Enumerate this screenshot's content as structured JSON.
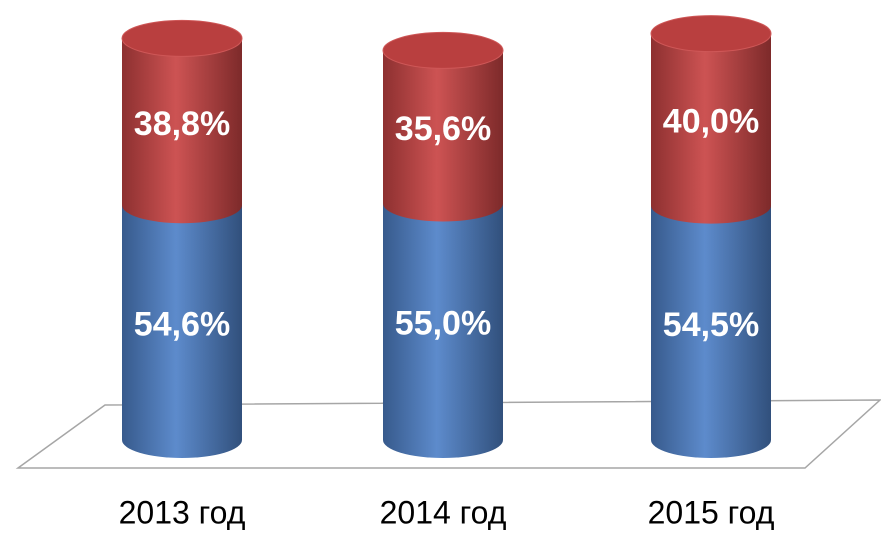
{
  "chart_data": {
    "type": "stacked-cylinder",
    "categories": [
      "2013 год",
      "2014 год",
      "2015 год"
    ],
    "series": [
      {
        "color": "#4f81c8",
        "values": [
          54.6,
          55.0,
          54.5
        ],
        "value_labels": [
          "54,6%",
          "55,0%",
          "54,5%"
        ]
      },
      {
        "color": "#c94444",
        "values": [
          38.8,
          35.6,
          40.0
        ],
        "value_labels": [
          "38,8%",
          "35,6%",
          "40,0%"
        ]
      }
    ]
  }
}
